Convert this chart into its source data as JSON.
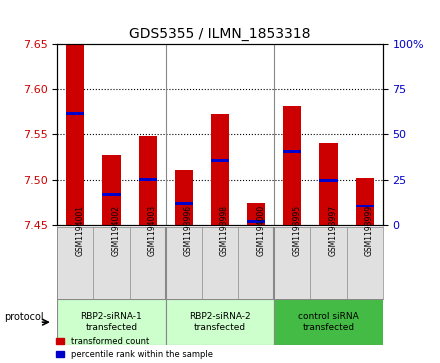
{
  "title": "GDS5355 / ILMN_1853318",
  "samples": [
    "GSM1194001",
    "GSM1194002",
    "GSM1194003",
    "GSM1193996",
    "GSM1193998",
    "GSM1194000",
    "GSM1193995",
    "GSM1193997",
    "GSM1193999"
  ],
  "bar_bottom": 7.45,
  "transformed_counts": [
    7.648,
    7.527,
    7.548,
    7.511,
    7.572,
    7.474,
    7.581,
    7.54,
    7.502
  ],
  "percentile_values": [
    7.573,
    7.484,
    7.5,
    7.474,
    7.521,
    7.454,
    7.531,
    7.499,
    7.471
  ],
  "bar_color": "#cc0000",
  "percentile_color": "#0000cc",
  "ylim_left": [
    7.45,
    7.65
  ],
  "ylim_right": [
    0,
    100
  ],
  "yticks_left": [
    7.45,
    7.5,
    7.55,
    7.6,
    7.65
  ],
  "yticks_right": [
    0,
    25,
    50,
    75,
    100
  ],
  "ytick_labels_right": [
    "0",
    "25",
    "50",
    "75",
    "100%"
  ],
  "grid_values": [
    7.5,
    7.55,
    7.6
  ],
  "protocol_groups": [
    {
      "label": "RBP2-siRNA-1\ntransfected",
      "indices": [
        0,
        1,
        2
      ],
      "color": "#ccffcc"
    },
    {
      "label": "RBP2-siRNA-2\ntransfected",
      "indices": [
        3,
        4,
        5
      ],
      "color": "#ccffcc"
    },
    {
      "label": "control siRNA\ntransfected",
      "indices": [
        6,
        7,
        8
      ],
      "color": "#44bb44"
    }
  ],
  "legend_items": [
    {
      "label": "transformed count",
      "color": "#cc0000"
    },
    {
      "label": "percentile rank within the sample",
      "color": "#0000cc"
    }
  ],
  "protocol_label": "protocol",
  "bg_color": "#e8e8e8",
  "plot_bg_color": "#ffffff"
}
